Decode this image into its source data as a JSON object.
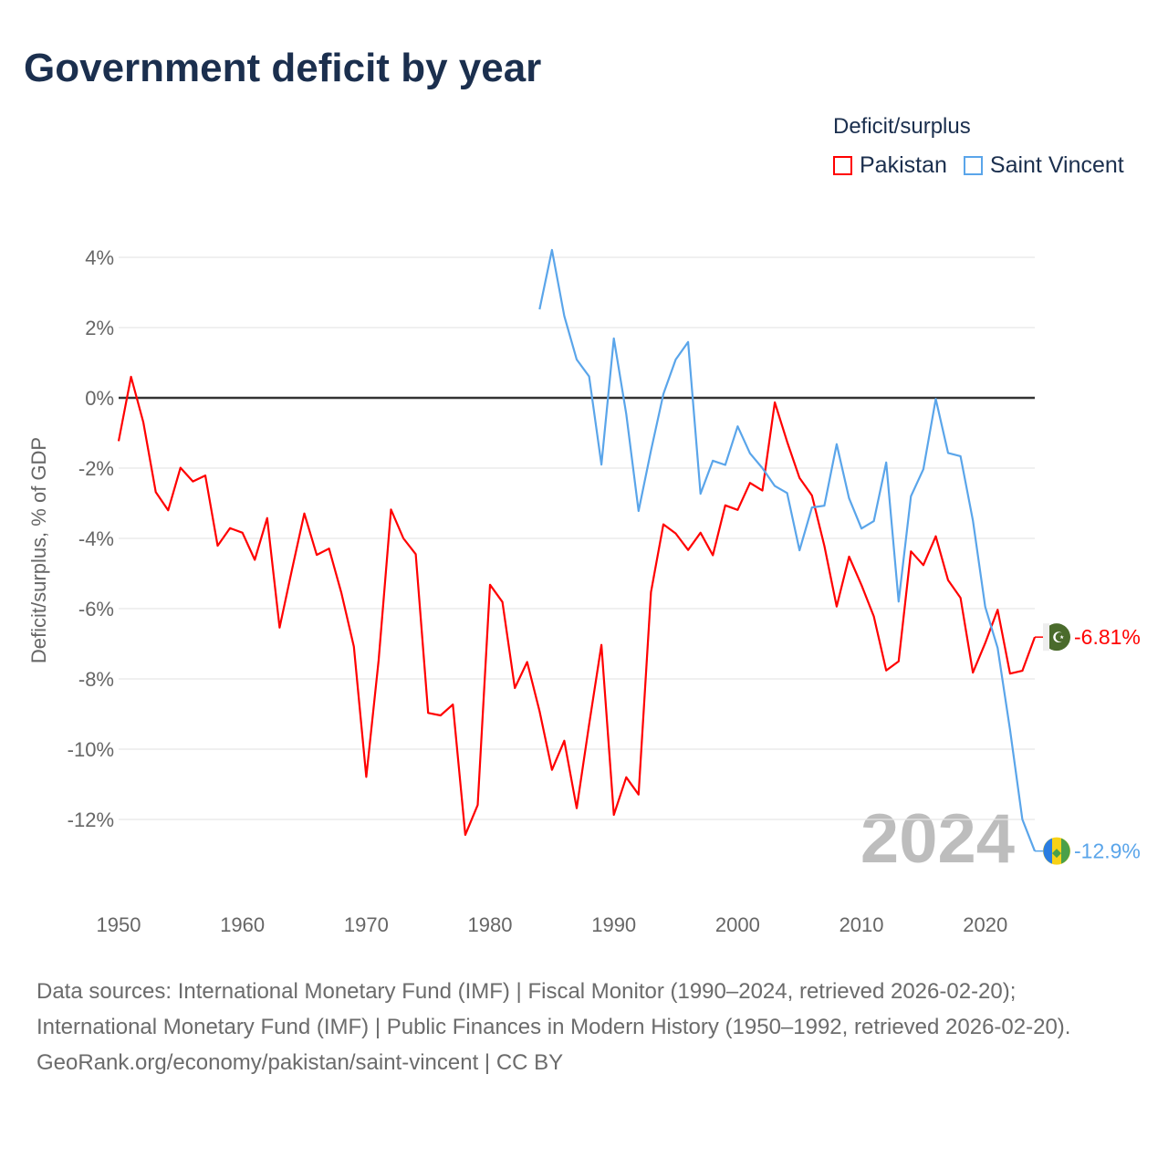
{
  "title": "Government deficit by year",
  "legend": {
    "title": "Deficit/surplus",
    "items": [
      {
        "name": "Pakistan",
        "color": "#ff0000"
      },
      {
        "name": "Saint Vincent",
        "color": "#5aa5ea"
      }
    ]
  },
  "chart_data": {
    "type": "line",
    "title": "Government deficit by year",
    "xlabel": "",
    "ylabel": "Deficit/surplus, % of GDP",
    "xlim": [
      1950,
      2024
    ],
    "ylim": [
      -13.5,
      4.5
    ],
    "y_ticks": [
      4,
      2,
      0,
      -2,
      -4,
      -6,
      -8,
      -10,
      -12
    ],
    "y_tick_labels": [
      "4%",
      "2%",
      "0%",
      "-2%",
      "-4%",
      "-6%",
      "-8%",
      "-10%",
      "-12%"
    ],
    "x_ticks": [
      1950,
      1960,
      1970,
      1980,
      1990,
      2000,
      2010,
      2020
    ],
    "x_tick_labels": [
      "1950",
      "1960",
      "1970",
      "1980",
      "1990",
      "2000",
      "2010",
      "2020"
    ],
    "grid": true,
    "legend_position": "top-right",
    "year_watermark": "2024",
    "series": [
      {
        "name": "Pakistan",
        "color": "#ff0000",
        "end_label": "-6.81%",
        "start_year": 1950,
        "values": [
          -1.23,
          0.6,
          -0.7,
          -2.68,
          -3.2,
          -1.99,
          -2.38,
          -2.21,
          -4.21,
          -3.71,
          -3.84,
          -4.61,
          -3.42,
          -6.54,
          -4.9,
          -3.29,
          -4.47,
          -4.29,
          -5.56,
          -7.08,
          -10.79,
          -7.48,
          -3.18,
          -4.0,
          -4.45,
          -8.97,
          -9.04,
          -8.73,
          -12.44,
          -11.59,
          -5.32,
          -5.81,
          -8.26,
          -7.52,
          -8.92,
          -10.59,
          -9.76,
          -11.68,
          -9.3,
          -7.03,
          -11.87,
          -10.8,
          -11.29,
          -5.53,
          -3.6,
          -3.86,
          -4.33,
          -3.84,
          -4.48,
          -3.06,
          -3.19,
          -2.42,
          -2.64,
          -0.13,
          -1.25,
          -2.28,
          -2.78,
          -4.21,
          -5.94,
          -4.52,
          -5.33,
          -6.22,
          -7.76,
          -7.5,
          -4.37,
          -4.76,
          -3.94,
          -5.19,
          -5.69,
          -7.82,
          -6.98,
          -6.03,
          -7.85,
          -7.77,
          -6.81
        ]
      },
      {
        "name": "Saint Vincent",
        "color": "#5aa5ea",
        "end_label": "-12.9%",
        "start_year": 1984,
        "values": [
          2.52,
          4.21,
          2.33,
          1.09,
          0.61,
          -1.9,
          1.69,
          -0.46,
          -3.22,
          -1.5,
          0.11,
          1.09,
          1.59,
          -2.73,
          -1.79,
          -1.91,
          -0.81,
          -1.58,
          -2.0,
          -2.51,
          -2.71,
          -4.34,
          -3.12,
          -3.07,
          -1.32,
          -2.86,
          -3.72,
          -3.51,
          -1.84,
          -5.8,
          -2.8,
          -2.03,
          -0.03,
          -1.57,
          -1.66,
          -3.49,
          -5.95,
          -7.12,
          -9.45,
          -12.0,
          -12.9
        ]
      }
    ]
  },
  "footer": {
    "sources": "Data sources: International Monetary Fund (IMF) | Fiscal Monitor (1990–2024, retrieved 2026-02-20); International Monetary Fund (IMF) | Public Finances in Modern History (1950–1992, retrieved 2026-02-20).",
    "credit": "GeoRank.org/economy/pakistan/saint-vincent | CC BY"
  }
}
